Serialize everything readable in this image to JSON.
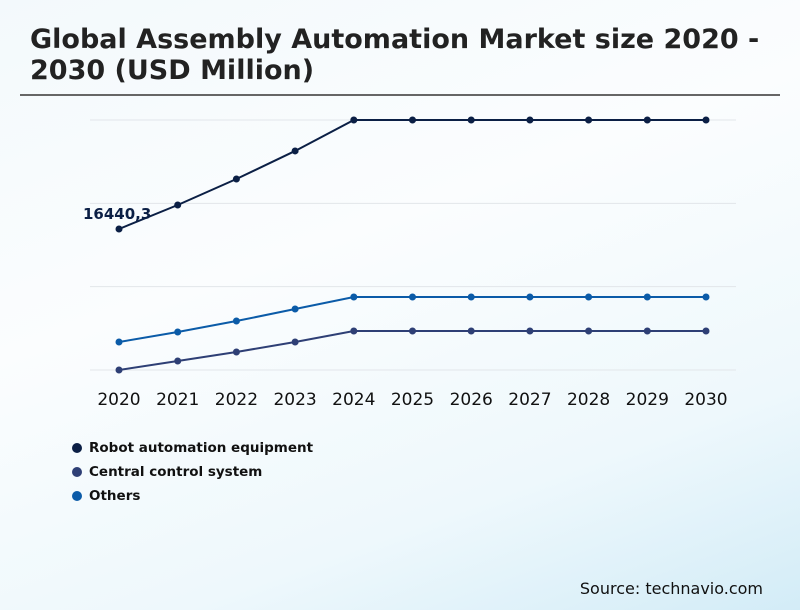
{
  "chart_data": {
    "type": "line",
    "title": "Global Assembly Automation Market size 2020 - 2030 (USD Million)",
    "x": [
      "2020",
      "2021",
      "2022",
      "2023",
      "2024",
      "2025",
      "2026",
      "2027",
      "2028",
      "2029",
      "2030"
    ],
    "series": [
      {
        "name": "Robot automation equipment",
        "color": "#0b1f45",
        "values": [
          16440.3,
          19240,
          22270,
          25540,
          29150,
          29150,
          29150,
          29150,
          29150,
          29150,
          29150
        ]
      },
      {
        "name": "Central control system",
        "color": "#2e3f75",
        "values": [
          0,
          1050,
          2100,
          3265,
          4550,
          4550,
          4550,
          4550,
          4550,
          4550,
          4550
        ]
      },
      {
        "name": "Others",
        "color": "#0b5ba8",
        "values": [
          3265,
          4430,
          5710,
          7110,
          8510,
          8510,
          8510,
          8510,
          8510,
          8510,
          8510
        ]
      }
    ],
    "data_labels": [
      {
        "series": "Robot automation equipment",
        "x": "2020",
        "text": "16440,3"
      }
    ],
    "ylim": [
      0,
      29150
    ],
    "grid": true,
    "yaxis_labels_shown": false,
    "legend_position": "bottom-left"
  },
  "source": "Source: technavio.com"
}
